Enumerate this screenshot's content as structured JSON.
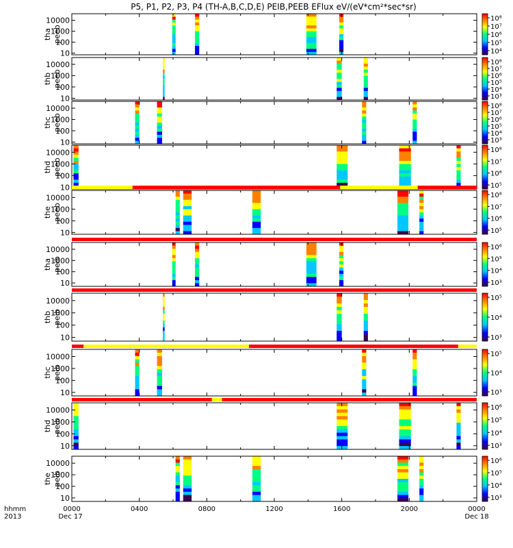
{
  "title": "P5, P1, P2, P3, P4 (TH-A,B,C,D,E) PEIB,PEEB EFlux eV/(eV*cm²*sec*sr)",
  "footer": {
    "hhmm_label": "hhmm",
    "year_label": "2013",
    "time_ticks": [
      "0000",
      "0400",
      "0800",
      "1200",
      "1600",
      "2000",
      "0000"
    ],
    "date_start": "Dec 17",
    "date_end": "Dec 18"
  },
  "colors": {
    "bar_yellow": "#ffff00",
    "bar_red": "#ff0000",
    "colorscale": [
      "#3c0050",
      "#0000ff",
      "#00c8ff",
      "#00ff80",
      "#ffff00",
      "#ff8000",
      "#ff0000"
    ]
  },
  "chart_data": {
    "type": "heatmap",
    "x_range_hours": [
      0,
      24
    ],
    "y_scale": "log",
    "panels": [
      {
        "label_line1": "tha",
        "label_line2": "peeb",
        "ylim": [
          7,
          40000
        ],
        "yticks": [
          "10000",
          "1000",
          "100",
          "10"
        ],
        "colorbar": {
          "labels": [
            "10⁸",
            "10⁷",
            "10⁶",
            "10⁵",
            "10⁴"
          ]
        },
        "intervals": [
          [
            5.95,
            6.15
          ],
          [
            7.3,
            7.55
          ],
          [
            13.9,
            14.5
          ],
          [
            15.85,
            16.1
          ]
        ],
        "bar": null
      },
      {
        "label_line1": "thb",
        "label_line2": "peeb",
        "ylim": [
          7,
          40000
        ],
        "yticks": [
          "10000",
          "1000",
          "100",
          "10"
        ],
        "colorbar": {
          "labels": [
            "10⁸",
            "10⁷",
            "10⁶",
            "10⁵",
            "10⁴",
            "10³"
          ]
        },
        "intervals": [
          [
            5.4,
            5.5
          ],
          [
            15.7,
            16.0
          ],
          [
            17.3,
            17.55
          ]
        ],
        "bar": null
      },
      {
        "label_line1": "thc",
        "label_line2": "peeb",
        "ylim": [
          7,
          40000
        ],
        "yticks": [
          "10000",
          "1000",
          "100",
          "10"
        ],
        "colorbar": {
          "labels": [
            "10⁸",
            "10⁷",
            "10⁶",
            "10⁵",
            "10⁴",
            "10³"
          ]
        },
        "intervals": [
          [
            3.75,
            4.0
          ],
          [
            5.05,
            5.35
          ],
          [
            17.2,
            17.45
          ],
          [
            20.2,
            20.45
          ]
        ],
        "bar": null
      },
      {
        "label_line1": "thd",
        "label_line2": "peeb",
        "ylim": [
          7,
          40000
        ],
        "yticks": [
          "10000",
          "1000",
          "100",
          "10"
        ],
        "colorbar": {
          "labels": [
            "10⁸",
            "10⁷",
            "10⁶",
            "10⁵"
          ]
        },
        "intervals": [
          [
            0.1,
            0.4
          ],
          [
            15.7,
            16.35
          ],
          [
            19.4,
            20.1
          ],
          [
            22.8,
            23.05
          ]
        ],
        "bar": null
      },
      {
        "label_line1": "the",
        "label_line2": "peeb",
        "ylim": [
          7,
          40000
        ],
        "yticks": [
          "10000",
          "1000",
          "100",
          "10"
        ],
        "colorbar": {
          "labels": [
            "10⁸",
            "10⁷",
            "10⁶",
            "10⁵"
          ]
        },
        "intervals": [
          [
            6.15,
            6.4
          ],
          [
            6.6,
            7.1
          ],
          [
            10.7,
            11.2
          ],
          [
            19.3,
            19.95
          ],
          [
            20.6,
            20.85
          ]
        ],
        "bar": [
          [
            0,
            3.6,
            "yellow"
          ],
          [
            3.6,
            15.9,
            "red"
          ],
          [
            15.9,
            20.5,
            "yellow"
          ],
          [
            20.5,
            24,
            "red"
          ]
        ]
      },
      {
        "label_line1": "tha",
        "label_line2": "peib",
        "ylim": [
          5,
          40000
        ],
        "yticks": [
          "10000",
          "1000",
          "100",
          "10"
        ],
        "colorbar": {
          "labels": [
            "10⁶",
            "10⁵",
            "10⁴",
            "10³"
          ]
        },
        "intervals": [
          [
            5.95,
            6.15
          ],
          [
            7.3,
            7.55
          ],
          [
            13.9,
            14.5
          ],
          [
            15.85,
            16.1
          ]
        ],
        "bar": [
          [
            0,
            24,
            "red"
          ]
        ]
      },
      {
        "label_line1": "thb",
        "label_line2": "peib",
        "ylim": [
          5,
          40000
        ],
        "yticks": [
          "10000",
          "1000",
          "100",
          "10"
        ],
        "colorbar": {
          "labels": [
            "10⁵",
            "10⁴",
            "10³"
          ]
        },
        "intervals": [
          [
            5.4,
            5.5
          ],
          [
            15.7,
            16.0
          ],
          [
            17.3,
            17.55
          ]
        ],
        "bar": [
          [
            0,
            24,
            "red"
          ]
        ]
      },
      {
        "label_line1": "thc",
        "label_line2": "peib",
        "ylim": [
          5,
          40000
        ],
        "yticks": [
          "10000",
          "1000",
          "100",
          "10"
        ],
        "colorbar": {
          "labels": [
            "10⁵",
            "10⁴",
            "10³"
          ]
        },
        "intervals": [
          [
            3.75,
            4.0
          ],
          [
            5.05,
            5.35
          ],
          [
            17.2,
            17.45
          ],
          [
            20.2,
            20.45
          ]
        ],
        "bar": [
          [
            0,
            0.7,
            "red"
          ],
          [
            0.7,
            10.5,
            "yellow"
          ],
          [
            10.5,
            22.9,
            "red"
          ],
          [
            22.9,
            24,
            "yellow"
          ]
        ]
      },
      {
        "label_line1": "thd",
        "label_line2": "peib",
        "ylim": [
          5,
          40000
        ],
        "yticks": [
          "10000",
          "1000",
          "100",
          "10"
        ],
        "colorbar": {
          "labels": [
            "10⁶",
            "10⁵",
            "10⁴",
            "10³"
          ]
        },
        "intervals": [
          [
            0.1,
            0.4
          ],
          [
            15.7,
            16.35
          ],
          [
            19.4,
            20.1
          ],
          [
            22.8,
            23.05
          ]
        ],
        "bar": [
          [
            0,
            8.3,
            "red"
          ],
          [
            8.3,
            8.9,
            "yellow"
          ],
          [
            8.9,
            24,
            "red"
          ]
        ]
      },
      {
        "label_line1": "the",
        "label_line2": "peib",
        "ylim": [
          5,
          40000
        ],
        "yticks": [
          "10000",
          "1000",
          "100",
          "10"
        ],
        "colorbar": {
          "labels": [
            "10⁶",
            "10⁵",
            "10⁴",
            "10³"
          ]
        },
        "intervals": [
          [
            6.15,
            6.4
          ],
          [
            6.6,
            7.1
          ],
          [
            10.7,
            11.2
          ],
          [
            19.3,
            19.95
          ],
          [
            20.6,
            20.85
          ]
        ],
        "bar": null
      }
    ]
  }
}
